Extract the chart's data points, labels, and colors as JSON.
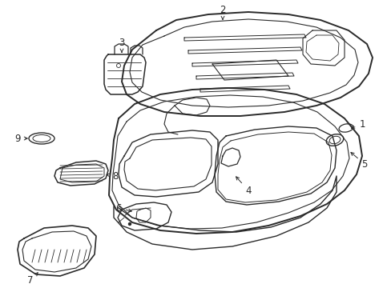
{
  "bg_color": "#ffffff",
  "line_color": "#2a2a2a",
  "label_fontsize": 8.5,
  "fig_w": 4.89,
  "fig_h": 3.6,
  "dpi": 100
}
